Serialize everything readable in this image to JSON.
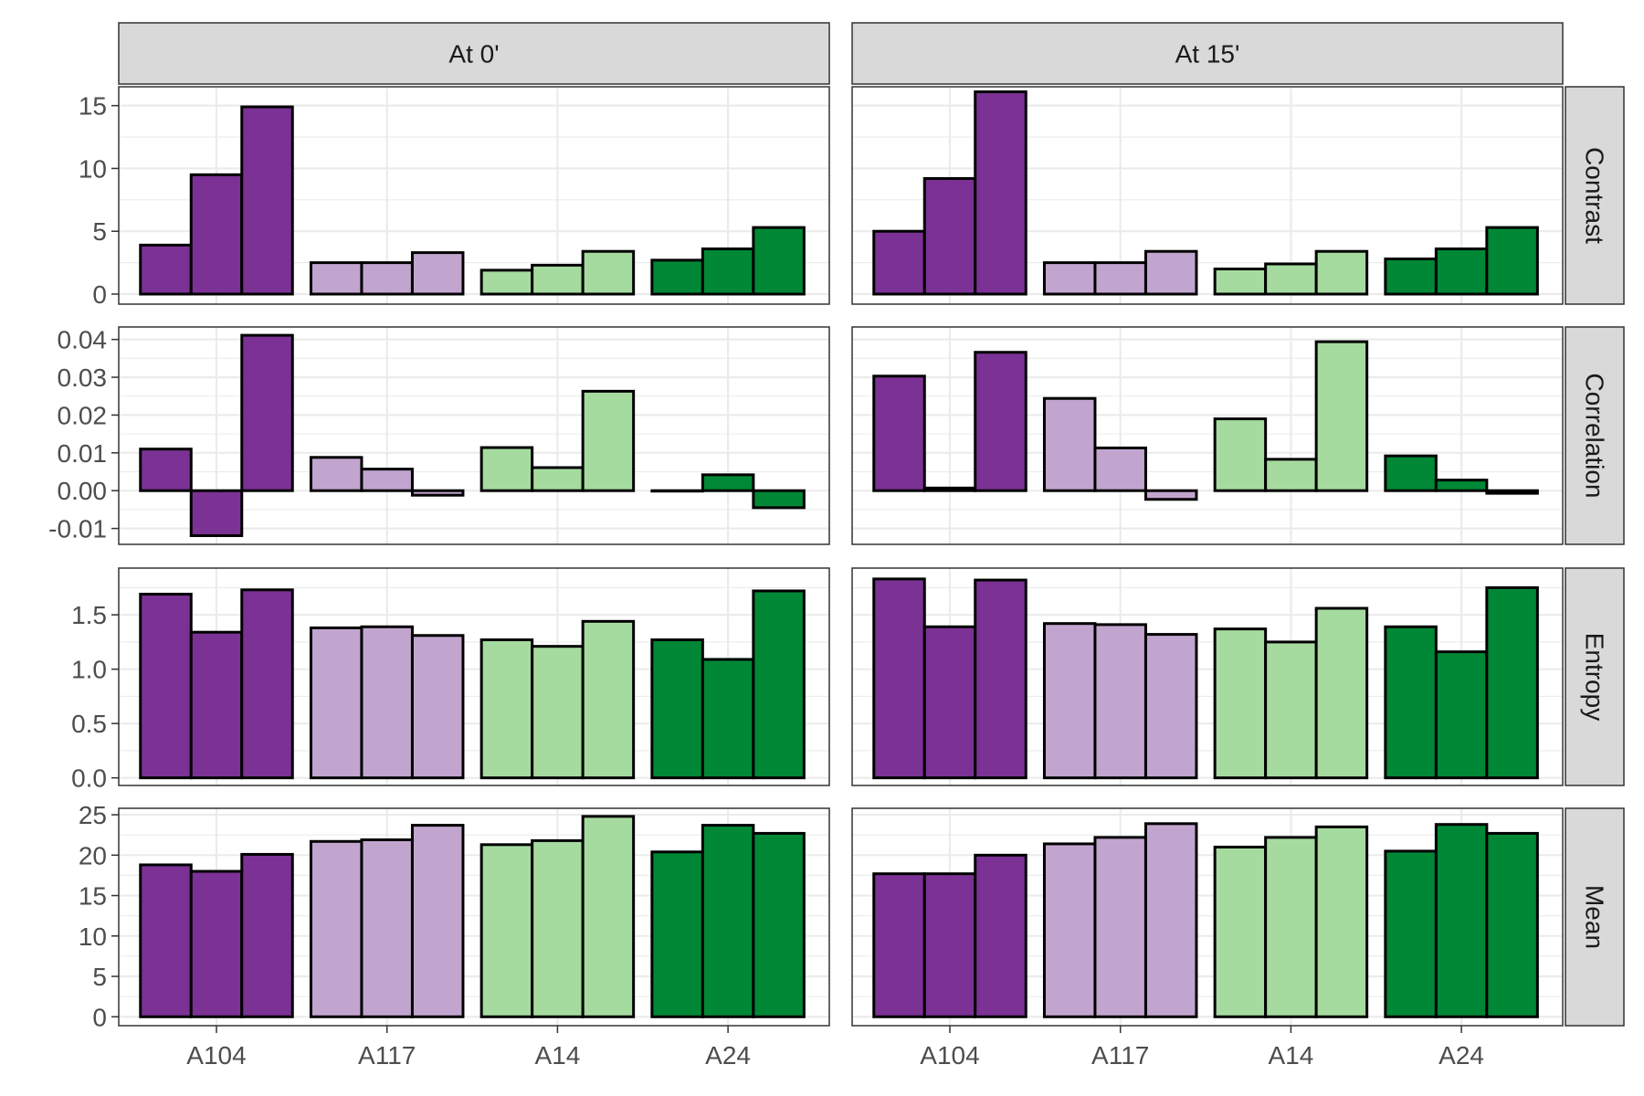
{
  "chart_data": {
    "type": "bar",
    "facet_columns": [
      "At 0'",
      "At 15'"
    ],
    "facet_rows": [
      "Contrast",
      "Correlation",
      "Entropy",
      "Mean"
    ],
    "categories": [
      "A104",
      "A117",
      "A14",
      "A24"
    ],
    "colors": {
      "A104": "#7b3294",
      "A117": "#c2a5cf",
      "A14": "#a6dba0",
      "A24": "#008837"
    },
    "bars_per_category": 3,
    "rows": [
      {
        "name": "Contrast",
        "ylim": [
          -0.8,
          16.5
        ],
        "ticks": [
          0,
          5,
          10,
          15
        ],
        "tick_labels": [
          "0",
          "5",
          "10",
          "15"
        ],
        "values": {
          "At 0'": {
            "A104": [
              3.9,
              9.5,
              14.9
            ],
            "A117": [
              2.5,
              2.5,
              3.3
            ],
            "A14": [
              1.9,
              2.3,
              3.4
            ],
            "A24": [
              2.7,
              3.6,
              5.3
            ]
          },
          "At 15'": {
            "A104": [
              5.0,
              9.2,
              16.1
            ],
            "A117": [
              2.5,
              2.5,
              3.4
            ],
            "A14": [
              2.0,
              2.4,
              3.4
            ],
            "A24": [
              2.8,
              3.6,
              5.3
            ]
          }
        }
      },
      {
        "name": "Correlation",
        "ylim": [
          -0.0142,
          0.0433
        ],
        "ticks": [
          -0.01,
          0.0,
          0.01,
          0.02,
          0.03,
          0.04
        ],
        "tick_labels": [
          "-0.01",
          "0.00",
          "0.01",
          "0.02",
          "0.03",
          "0.04"
        ],
        "values": {
          "At 0'": {
            "A104": [
              0.011,
              -0.0119,
              0.0411
            ],
            "A117": [
              0.0088,
              0.0057,
              -0.0012
            ],
            "A14": [
              0.0114,
              0.0061,
              0.0263
            ],
            "A24": [
              0.0,
              0.0042,
              -0.0045
            ]
          },
          "At 15'": {
            "A104": [
              0.0303,
              0.0007,
              0.0366
            ],
            "A117": [
              0.0244,
              0.0113,
              -0.0023
            ],
            "A14": [
              0.019,
              0.0083,
              0.0394
            ],
            "A24": [
              0.0092,
              0.0028,
              -0.0007
            ]
          }
        }
      },
      {
        "name": "Entropy",
        "ylim": [
          -0.07,
          1.93
        ],
        "ticks": [
          0.0,
          0.5,
          1.0,
          1.5
        ],
        "tick_labels": [
          "0.0",
          "0.5",
          "1.0",
          "1.5"
        ],
        "values": {
          "At 0'": {
            "A104": [
              1.69,
              1.34,
              1.73
            ],
            "A117": [
              1.38,
              1.39,
              1.31
            ],
            "A14": [
              1.27,
              1.21,
              1.44
            ],
            "A24": [
              1.27,
              1.09,
              1.72
            ]
          },
          "At 15'": {
            "A104": [
              1.83,
              1.39,
              1.82
            ],
            "A117": [
              1.42,
              1.41,
              1.32
            ],
            "A14": [
              1.37,
              1.25,
              1.56
            ],
            "A24": [
              1.39,
              1.16,
              1.75
            ]
          }
        }
      },
      {
        "name": "Mean",
        "ylim": [
          -1.1,
          25.8
        ],
        "ticks": [
          0,
          5,
          10,
          15,
          20,
          25
        ],
        "tick_labels": [
          "0",
          "5",
          "10",
          "15",
          "20",
          "25"
        ],
        "values": {
          "At 0'": {
            "A104": [
              18.8,
              18.0,
              20.1
            ],
            "A117": [
              21.7,
              21.9,
              23.7
            ],
            "A14": [
              21.3,
              21.8,
              24.8
            ],
            "A24": [
              20.4,
              23.7,
              22.7
            ]
          },
          "At 15'": {
            "A104": [
              17.7,
              17.7,
              20.0
            ],
            "A117": [
              21.4,
              22.2,
              23.9
            ],
            "A14": [
              21.0,
              22.2,
              23.5
            ],
            "A24": [
              20.5,
              23.8,
              22.7
            ]
          }
        }
      }
    ],
    "grid": true,
    "legend": "none"
  }
}
